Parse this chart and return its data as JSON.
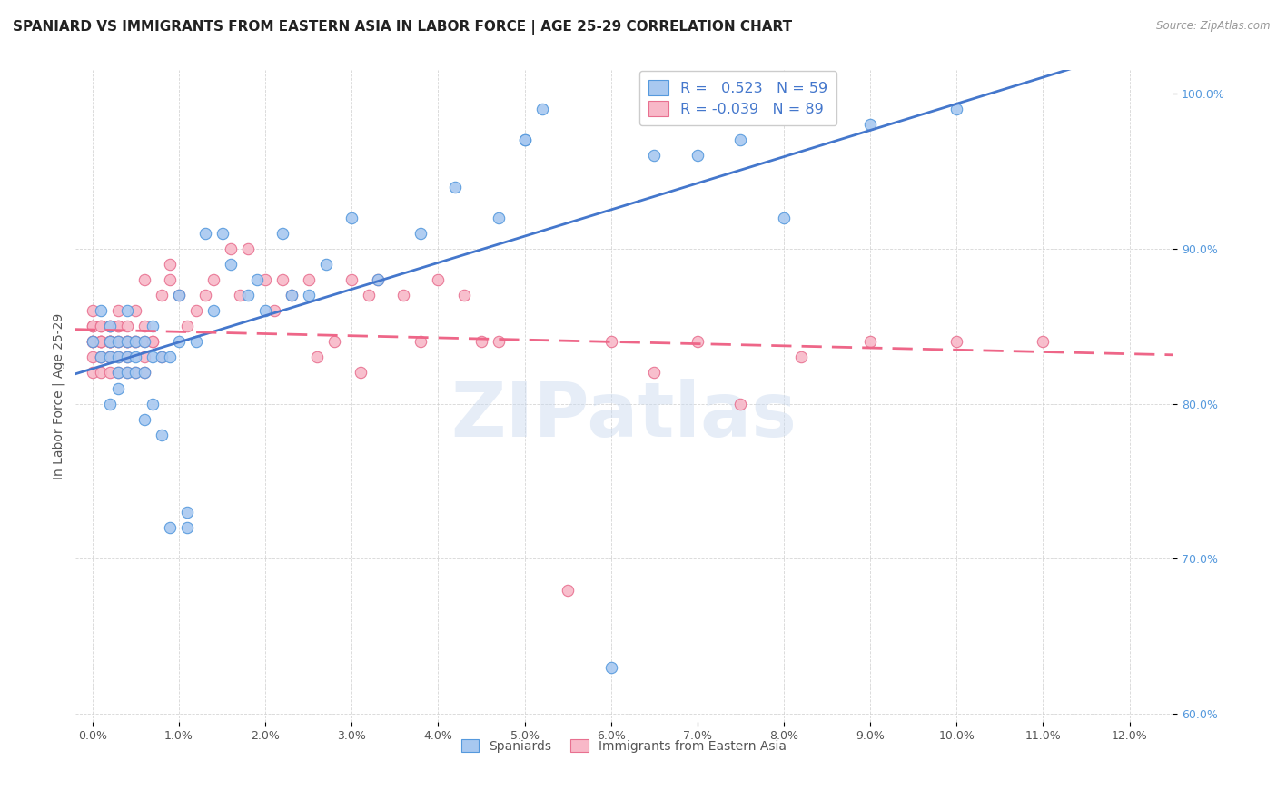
{
  "title": "SPANIARD VS IMMIGRANTS FROM EASTERN ASIA IN LABOR FORCE | AGE 25-29 CORRELATION CHART",
  "source_text": "Source: ZipAtlas.com",
  "ylabel": "In Labor Force | Age 25-29",
  "xlim": [
    -0.002,
    0.125
  ],
  "ylim": [
    0.595,
    1.015
  ],
  "xtick_positions": [
    0.0,
    0.01,
    0.02,
    0.03,
    0.04,
    0.05,
    0.06,
    0.07,
    0.08,
    0.09,
    0.1,
    0.11,
    0.12
  ],
  "xticklabels": [
    "0.0%",
    "1.0%",
    "2.0%",
    "3.0%",
    "4.0%",
    "5.0%",
    "6.0%",
    "7.0%",
    "8.0%",
    "9.0%",
    "10.0%",
    "11.0%",
    "12.0%"
  ],
  "ytick_positions": [
    0.6,
    0.7,
    0.8,
    0.9,
    1.0
  ],
  "yticklabels": [
    "60.0%",
    "70.0%",
    "80.0%",
    "90.0%",
    "100.0%"
  ],
  "blue_fill": "#A8C8F0",
  "blue_edge": "#5599DD",
  "pink_fill": "#F8B8C8",
  "pink_edge": "#E87090",
  "blue_line_color": "#4477CC",
  "pink_line_color": "#EE6688",
  "R_blue": 0.523,
  "N_blue": 59,
  "R_pink": -0.039,
  "N_pink": 89,
  "legend_label_blue": "Spaniards",
  "legend_label_pink": "Immigrants from Eastern Asia",
  "blue_scatter_x": [
    0.0,
    0.001,
    0.001,
    0.002,
    0.002,
    0.002,
    0.002,
    0.003,
    0.003,
    0.003,
    0.003,
    0.004,
    0.004,
    0.004,
    0.004,
    0.005,
    0.005,
    0.005,
    0.006,
    0.006,
    0.006,
    0.007,
    0.007,
    0.007,
    0.008,
    0.008,
    0.009,
    0.009,
    0.01,
    0.01,
    0.011,
    0.011,
    0.012,
    0.013,
    0.014,
    0.015,
    0.016,
    0.018,
    0.019,
    0.02,
    0.022,
    0.023,
    0.025,
    0.027,
    0.03,
    0.033,
    0.038,
    0.042,
    0.047,
    0.05,
    0.05,
    0.052,
    0.06,
    0.065,
    0.07,
    0.075,
    0.08,
    0.09,
    0.1
  ],
  "blue_scatter_y": [
    0.84,
    0.83,
    0.86,
    0.8,
    0.84,
    0.85,
    0.83,
    0.82,
    0.81,
    0.84,
    0.83,
    0.84,
    0.82,
    0.86,
    0.83,
    0.83,
    0.82,
    0.84,
    0.82,
    0.84,
    0.79,
    0.85,
    0.83,
    0.8,
    0.78,
    0.83,
    0.83,
    0.72,
    0.87,
    0.84,
    0.72,
    0.73,
    0.84,
    0.91,
    0.86,
    0.91,
    0.89,
    0.87,
    0.88,
    0.86,
    0.91,
    0.87,
    0.87,
    0.89,
    0.92,
    0.88,
    0.91,
    0.94,
    0.92,
    0.97,
    0.97,
    0.99,
    0.63,
    0.96,
    0.96,
    0.97,
    0.92,
    0.98,
    0.99
  ],
  "pink_scatter_x": [
    0.0,
    0.0,
    0.0,
    0.0,
    0.0,
    0.0,
    0.0,
    0.0,
    0.001,
    0.001,
    0.001,
    0.001,
    0.001,
    0.001,
    0.001,
    0.001,
    0.001,
    0.002,
    0.002,
    0.002,
    0.002,
    0.002,
    0.002,
    0.002,
    0.002,
    0.002,
    0.002,
    0.003,
    0.003,
    0.003,
    0.003,
    0.003,
    0.003,
    0.003,
    0.004,
    0.004,
    0.004,
    0.004,
    0.004,
    0.004,
    0.005,
    0.005,
    0.005,
    0.005,
    0.006,
    0.006,
    0.006,
    0.006,
    0.006,
    0.007,
    0.007,
    0.008,
    0.008,
    0.009,
    0.009,
    0.01,
    0.011,
    0.012,
    0.013,
    0.014,
    0.016,
    0.017,
    0.018,
    0.02,
    0.021,
    0.022,
    0.023,
    0.025,
    0.026,
    0.028,
    0.03,
    0.031,
    0.032,
    0.033,
    0.036,
    0.038,
    0.04,
    0.043,
    0.045,
    0.047,
    0.055,
    0.06,
    0.065,
    0.07,
    0.075,
    0.082,
    0.09,
    0.1,
    0.11
  ],
  "pink_scatter_y": [
    0.84,
    0.85,
    0.84,
    0.83,
    0.82,
    0.85,
    0.86,
    0.84,
    0.83,
    0.82,
    0.84,
    0.85,
    0.84,
    0.83,
    0.85,
    0.84,
    0.84,
    0.84,
    0.82,
    0.83,
    0.85,
    0.84,
    0.84,
    0.83,
    0.85,
    0.84,
    0.84,
    0.84,
    0.82,
    0.83,
    0.86,
    0.85,
    0.84,
    0.85,
    0.84,
    0.82,
    0.83,
    0.84,
    0.84,
    0.85,
    0.84,
    0.86,
    0.82,
    0.84,
    0.88,
    0.84,
    0.83,
    0.82,
    0.85,
    0.84,
    0.84,
    0.83,
    0.87,
    0.89,
    0.88,
    0.87,
    0.85,
    0.86,
    0.87,
    0.88,
    0.9,
    0.87,
    0.9,
    0.88,
    0.86,
    0.88,
    0.87,
    0.88,
    0.83,
    0.84,
    0.88,
    0.82,
    0.87,
    0.88,
    0.87,
    0.84,
    0.88,
    0.87,
    0.84,
    0.84,
    0.68,
    0.84,
    0.82,
    0.84,
    0.8,
    0.83,
    0.84,
    0.84,
    0.84
  ],
  "watermark": "ZIPatlas",
  "bg_color": "#FFFFFF",
  "grid_color": "#CCCCCC",
  "title_fontsize": 11,
  "axis_label_fontsize": 10,
  "tick_fontsize": 9,
  "marker_size": 80
}
